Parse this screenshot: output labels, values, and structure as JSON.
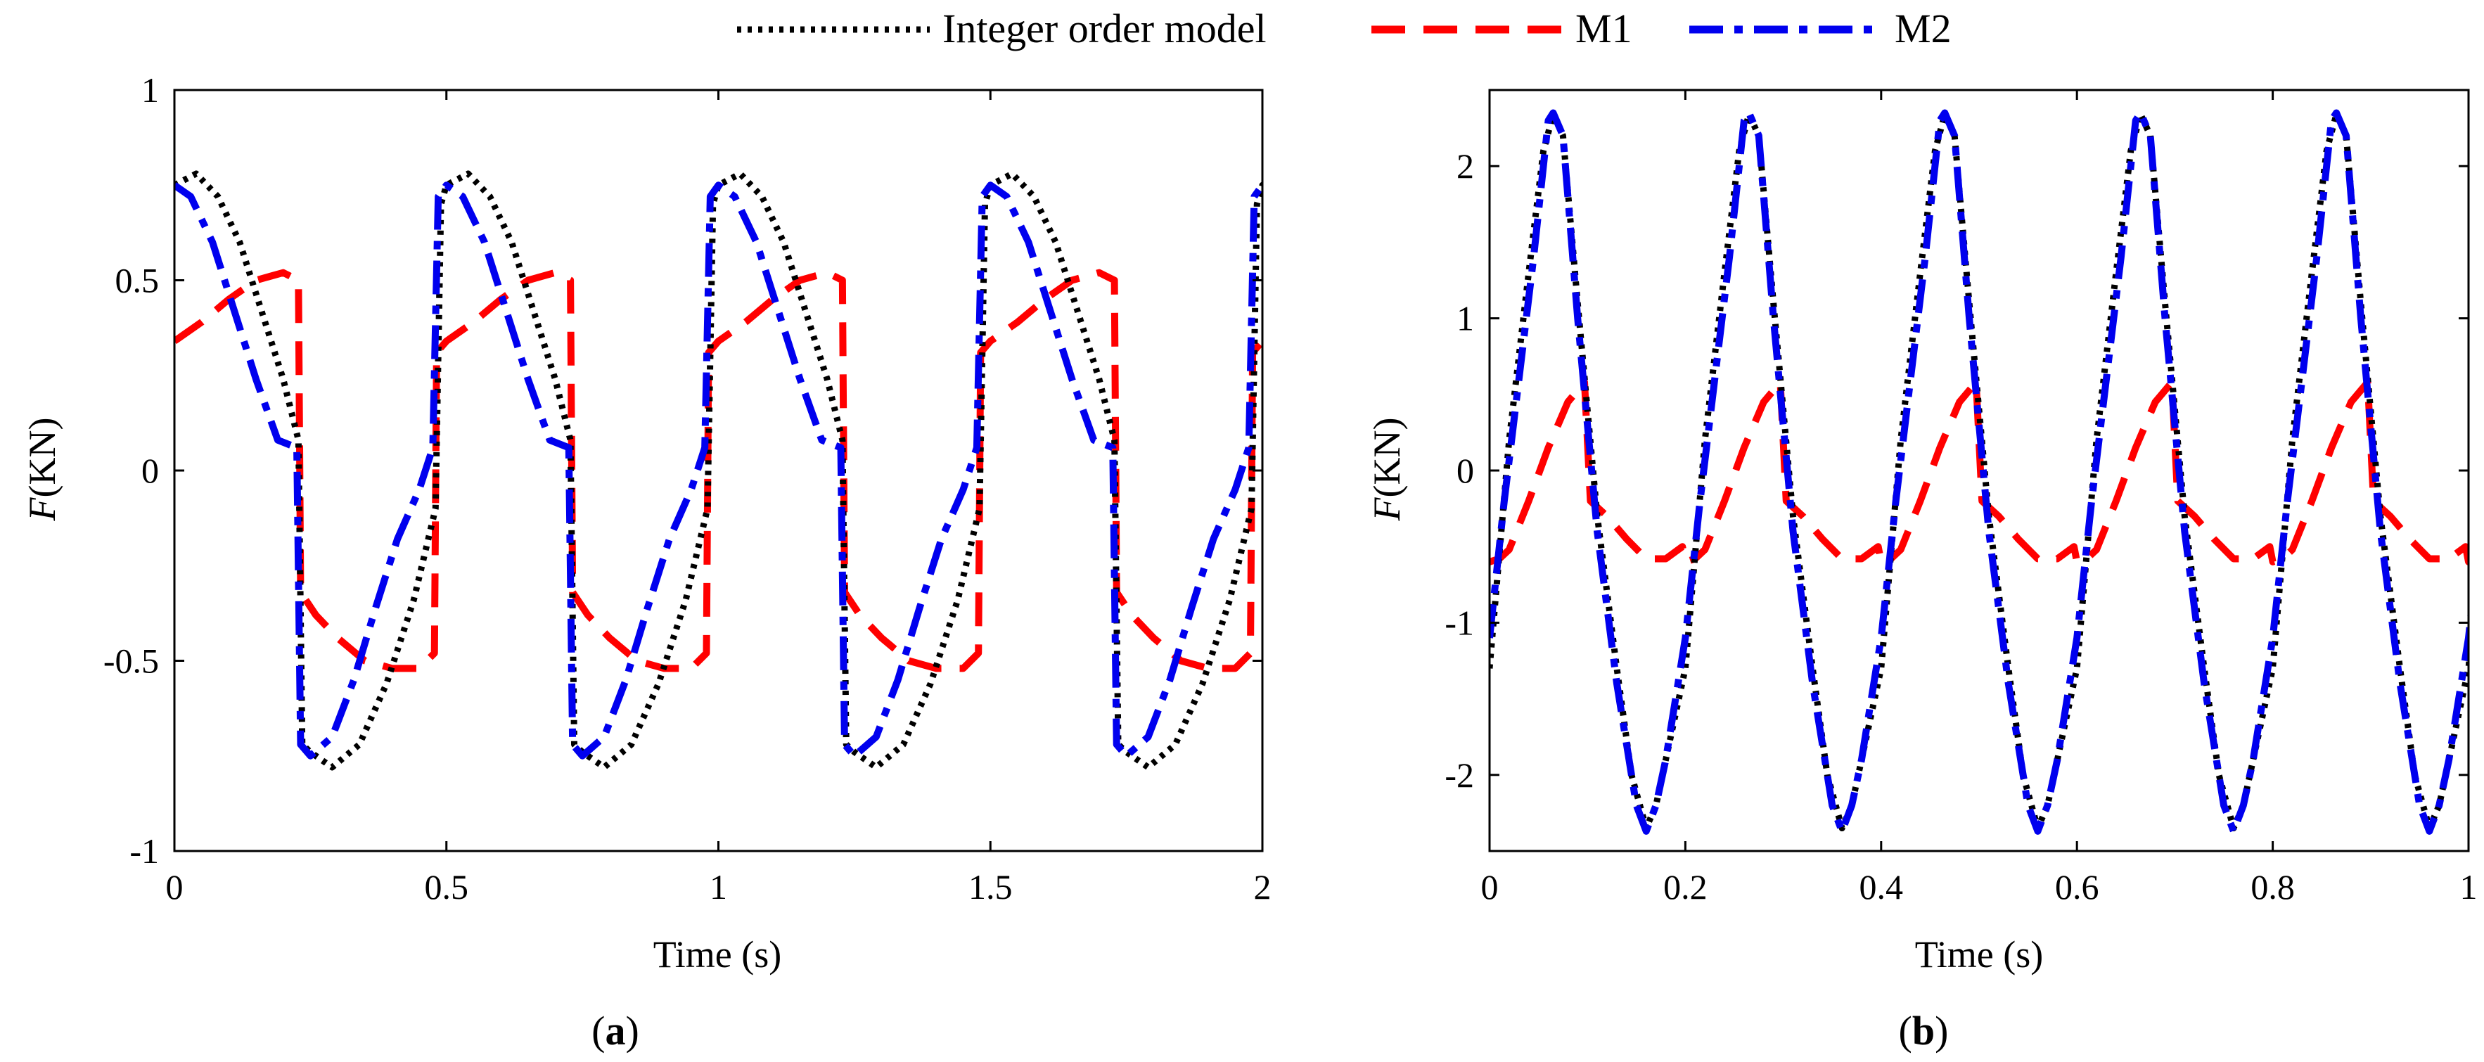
{
  "legend": {
    "entries": [
      {
        "name": "Integer order model",
        "color": "#000000",
        "style": "dotted"
      },
      {
        "name": "M1",
        "color": "#ff0000",
        "style": "dashed"
      },
      {
        "name": "M2",
        "color": "#0000ee",
        "style": "dashdot"
      }
    ]
  },
  "chart_data": [
    {
      "type": "line",
      "panel": "(a)",
      "caption_letter": "a",
      "xlabel": "Time (s)",
      "ylabel_italic": "F",
      "ylabel_unit": "(KN)",
      "xlim": [
        0,
        2
      ],
      "ylim": [
        -1,
        1
      ],
      "xticks": [
        0,
        0.5,
        1,
        1.5,
        2
      ],
      "xtick_labels": [
        "0",
        "0.5",
        "1",
        "1.5",
        "2"
      ],
      "yticks": [
        -1,
        -0.5,
        0,
        0.5,
        1
      ],
      "ytick_labels": [
        "-1",
        "-0.5",
        "0",
        "0.5",
        "1"
      ],
      "period": 0.5,
      "series": [
        {
          "name": "Integer order model",
          "color": "#000000",
          "style": "dotted",
          "t": [
            0,
            0.04,
            0.08,
            0.12,
            0.16,
            0.2,
            0.228,
            0.235,
            0.25,
            0.29,
            0.34,
            0.39,
            0.44,
            0.48,
            0.49,
            0.5
          ],
          "y": [
            0.75,
            0.78,
            0.72,
            0.6,
            0.42,
            0.24,
            0.08,
            -0.72,
            -0.74,
            -0.78,
            -0.72,
            -0.56,
            -0.34,
            -0.1,
            0.7,
            0.75
          ]
        },
        {
          "name": "M1",
          "color": "#ff0000",
          "style": "dashed",
          "t": [
            0,
            0.05,
            0.1,
            0.15,
            0.2,
            0.228,
            0.232,
            0.26,
            0.3,
            0.35,
            0.4,
            0.45,
            0.478,
            0.482,
            0.5
          ],
          "y": [
            0.34,
            0.39,
            0.45,
            0.5,
            0.52,
            0.5,
            -0.32,
            -0.38,
            -0.44,
            -0.5,
            -0.52,
            -0.52,
            -0.48,
            0.31,
            0.34
          ]
        },
        {
          "name": "M2",
          "color": "#0000ee",
          "style": "dashdot",
          "t": [
            0,
            0.03,
            0.07,
            0.11,
            0.15,
            0.19,
            0.225,
            0.232,
            0.25,
            0.29,
            0.33,
            0.37,
            0.41,
            0.45,
            0.475,
            0.485,
            0.5
          ],
          "y": [
            0.75,
            0.72,
            0.6,
            0.42,
            0.24,
            0.08,
            0.06,
            -0.72,
            -0.75,
            -0.7,
            -0.55,
            -0.36,
            -0.18,
            -0.05,
            0.06,
            0.72,
            0.75
          ]
        }
      ]
    },
    {
      "type": "line",
      "panel": "(b)",
      "caption_letter": "b",
      "xlabel": "Time (s)",
      "ylabel_italic": "F",
      "ylabel_unit": "(KN)",
      "xlim": [
        0,
        1
      ],
      "ylim": [
        -2.5,
        2.5
      ],
      "xticks": [
        0,
        0.2,
        0.4,
        0.6,
        0.8,
        1
      ],
      "xtick_labels": [
        "0",
        "0.2",
        "0.4",
        "0.6",
        "0.8",
        "1"
      ],
      "yticks": [
        -2,
        -1,
        0,
        1,
        2
      ],
      "ytick_labels": [
        "-2",
        "-1",
        "0",
        "1",
        "2"
      ],
      "period": 0.2,
      "series": [
        {
          "name": "Integer order model",
          "color": "#000000",
          "style": "dotted",
          "t": [
            0,
            0.02,
            0.04,
            0.055,
            0.065,
            0.075,
            0.09,
            0.11,
            0.13,
            0.145,
            0.16,
            0.17,
            0.18,
            0.2
          ],
          "y": [
            -1.3,
            0.2,
            1.3,
            2.1,
            2.34,
            2.2,
            1.1,
            -0.3,
            -1.3,
            -2.0,
            -2.35,
            -2.2,
            -1.9,
            -1.3
          ]
        },
        {
          "name": "M1",
          "color": "#ff0000",
          "style": "dashed",
          "t": [
            0,
            0.01,
            0.02,
            0.04,
            0.06,
            0.08,
            0.097,
            0.103,
            0.12,
            0.14,
            0.16,
            0.18,
            0.197,
            0.2
          ],
          "y": [
            -0.6,
            -0.58,
            -0.52,
            -0.2,
            0.15,
            0.45,
            0.58,
            -0.2,
            -0.3,
            -0.45,
            -0.58,
            -0.58,
            -0.5,
            -0.6
          ]
        },
        {
          "name": "M2",
          "color": "#0000ee",
          "style": "dashdot",
          "t": [
            0,
            0.015,
            0.03,
            0.045,
            0.06,
            0.065,
            0.075,
            0.09,
            0.11,
            0.13,
            0.15,
            0.16,
            0.17,
            0.18,
            0.2
          ],
          "y": [
            -1.1,
            -0.2,
            0.6,
            1.4,
            2.3,
            2.35,
            2.2,
            1.0,
            -0.4,
            -1.4,
            -2.2,
            -2.37,
            -2.2,
            -1.9,
            -1.1
          ]
        }
      ]
    }
  ]
}
